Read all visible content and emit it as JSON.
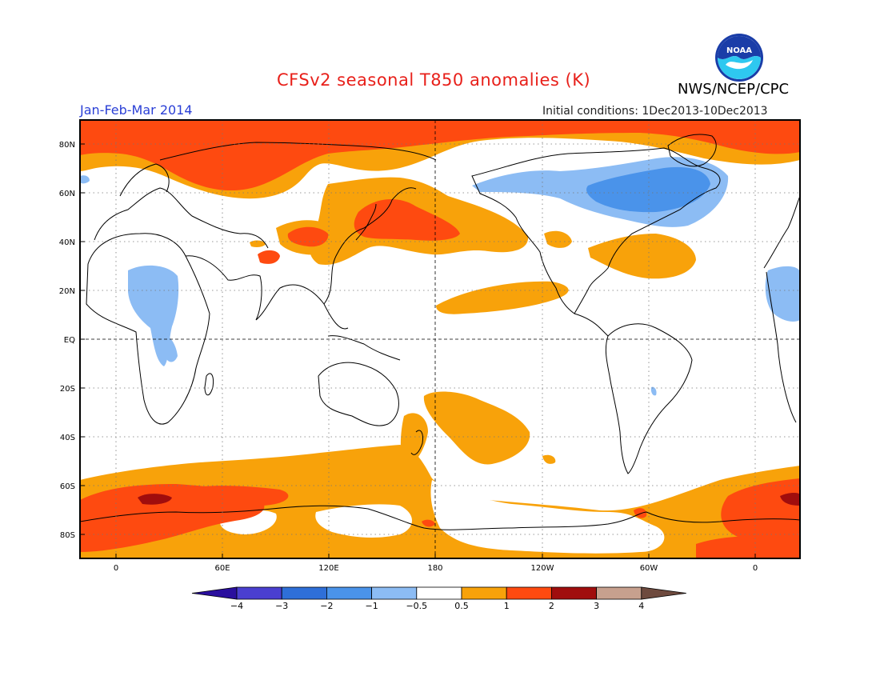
{
  "header": {
    "title": "CFSv2 seasonal T850 anomalies (K)",
    "season": "Jan-Feb-Mar 2014",
    "initial_conditions": "Initial conditions: 1Dec2013-10Dec2013",
    "org": "NWS/NCEP/CPC",
    "logo_text": "NOAA"
  },
  "map": {
    "lat_labels": [
      "80N",
      "60N",
      "40N",
      "20N",
      "EQ",
      "20S",
      "40S",
      "60S",
      "80S"
    ],
    "lon_labels": [
      "0",
      "60E",
      "120E",
      "180",
      "120W",
      "60W",
      "0"
    ]
  },
  "colorbar": {
    "labels": [
      "-4",
      "-3",
      "-2",
      "-1",
      "-0.5",
      "0.5",
      "1",
      "2",
      "3",
      "4"
    ],
    "colors": [
      "#2a0f9e",
      "#4a3fd0",
      "#2e6fd8",
      "#4a93ea",
      "#8cbcf4",
      "#ffffff",
      "#f8a20a",
      "#fe4a10",
      "#a00d0d",
      "#c7a08e",
      "#6e4a3e"
    ]
  },
  "colors": {
    "title": "#e8201a",
    "season": "#2a3fd6",
    "warm1": "#f8a20a",
    "warm2": "#fe4a10",
    "warm3": "#a00d0d",
    "cool1": "#8cbcf4",
    "cool2": "#4a93ea"
  }
}
